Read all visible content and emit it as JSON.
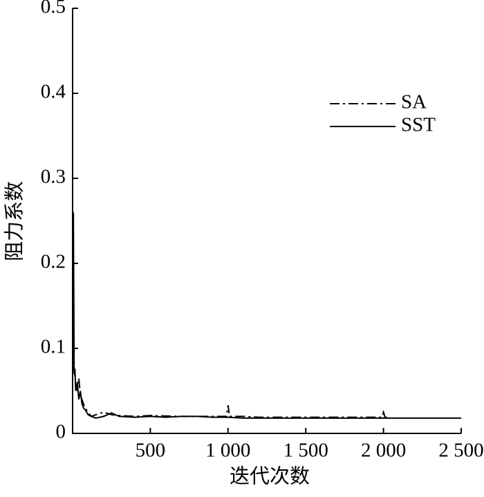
{
  "chart_data": {
    "type": "line",
    "x_label": "迭代次数",
    "y_label": "阻力系数",
    "xlim": [
      0,
      2500
    ],
    "xticks": [
      500,
      {
        "value": 1000,
        "label": "1 000"
      },
      {
        "value": 1500,
        "label": "1 500"
      },
      {
        "value": 2000,
        "label": "2 000"
      },
      {
        "value": 2500,
        "label": "2 500"
      }
    ],
    "ylim": [
      0,
      0.5
    ],
    "yticks": [
      0,
      0.1,
      0.2,
      0.3,
      0.4,
      0.5
    ],
    "legend": "upper right",
    "series": [
      {
        "name": "SA",
        "color": "#000000",
        "style": "dashdot",
        "x": [
          1,
          10,
          20,
          30,
          40,
          50,
          60,
          80,
          100,
          120,
          150,
          200,
          250,
          300,
          400,
          500,
          700,
          900,
          990,
          1000,
          1010,
          1100,
          1200,
          1500,
          1990,
          2000,
          2010,
          2030
        ],
        "values": [
          0.1,
          0.075,
          0.06,
          0.05,
          0.065,
          0.045,
          0.04,
          0.03,
          0.025,
          0.02,
          0.022,
          0.025,
          0.022,
          0.021,
          0.02,
          0.021,
          0.02,
          0.02,
          0.02,
          0.033,
          0.02,
          0.02,
          0.019,
          0.019,
          0.019,
          0.025,
          0.019,
          0.019
        ]
      },
      {
        "name": "SST",
        "color": "#000000",
        "style": "solid",
        "x": [
          1,
          5,
          10,
          15,
          20,
          30,
          40,
          50,
          60,
          70,
          80,
          100,
          120,
          150,
          200,
          250,
          300,
          400,
          500,
          600,
          700,
          800,
          900,
          1000,
          1100,
          1200,
          1500,
          2000,
          2500
        ],
        "values": [
          0.15,
          0.26,
          0.07,
          0.076,
          0.05,
          0.06,
          0.04,
          0.05,
          0.035,
          0.03,
          0.028,
          0.022,
          0.02,
          0.018,
          0.02,
          0.024,
          0.02,
          0.019,
          0.02,
          0.019,
          0.02,
          0.02,
          0.019,
          0.019,
          0.018,
          0.018,
          0.018,
          0.018,
          0.018
        ]
      }
    ]
  }
}
